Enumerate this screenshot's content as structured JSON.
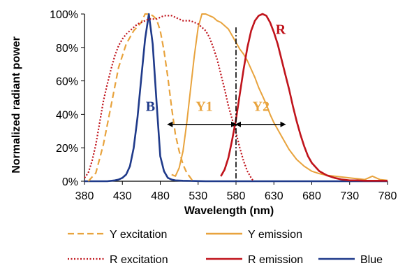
{
  "chart_data": {
    "type": "line",
    "xlabel": "Wavelength (nm)",
    "ylabel": "Normalized radiant power",
    "xlim": [
      380,
      780
    ],
    "ylim": [
      0,
      100
    ],
    "x_ticks": [
      380,
      430,
      480,
      530,
      580,
      630,
      680,
      730,
      780
    ],
    "y_ticks": [
      0,
      20,
      40,
      60,
      80,
      100
    ],
    "y_tick_labels": [
      "0%",
      "20%",
      "40%",
      "60%",
      "80%",
      "100%"
    ],
    "grid": false,
    "legend_position": "bottom",
    "series": [
      {
        "name": "Y excitation",
        "color": "#E8A33D",
        "style": "dashed",
        "x": [
          385,
          395,
          405,
          415,
          425,
          435,
          445,
          455,
          460,
          465,
          470,
          475,
          480,
          485,
          490,
          495,
          500,
          505,
          510,
          515,
          520,
          523
        ],
        "y": [
          0,
          5,
          22,
          45,
          68,
          82,
          90,
          95,
          100,
          100,
          99,
          97,
          90,
          78,
          62,
          44,
          28,
          18,
          10,
          5,
          2,
          0
        ]
      },
      {
        "name": "Y emission",
        "color": "#E8A33D",
        "style": "solid",
        "x": [
          495,
          500,
          505,
          510,
          515,
          520,
          525,
          530,
          535,
          540,
          545,
          550,
          555,
          560,
          565,
          570,
          575,
          580,
          585,
          590,
          595,
          600,
          605,
          610,
          615,
          620,
          625,
          630,
          640,
          650,
          660,
          670,
          680,
          690,
          700,
          710,
          720,
          730,
          740,
          750,
          760,
          770,
          780
        ],
        "y": [
          4,
          3,
          8,
          18,
          35,
          55,
          75,
          92,
          100,
          100,
          99,
          98,
          96,
          95,
          93,
          91,
          87,
          83,
          79,
          76,
          72,
          67,
          62,
          56,
          51,
          46,
          40,
          35,
          27,
          19,
          13,
          9,
          6,
          4.5,
          3.5,
          3,
          2.5,
          2,
          1.5,
          1,
          3,
          1,
          0.5
        ]
      },
      {
        "name": "R excitation",
        "color": "#C0141C",
        "style": "dotted",
        "x": [
          380,
          385,
          390,
          395,
          400,
          405,
          410,
          415,
          420,
          425,
          430,
          435,
          440,
          445,
          450,
          455,
          460,
          465,
          470,
          475,
          480,
          485,
          490,
          495,
          500,
          505,
          510,
          515,
          520,
          525,
          530,
          535,
          540,
          545,
          550,
          555,
          560,
          565,
          570,
          575,
          580,
          585,
          590,
          595,
          600,
          603
        ],
        "y": [
          2,
          5,
          12,
          22,
          35,
          48,
          58,
          67,
          75,
          81,
          85,
          88,
          90,
          92,
          94,
          95,
          96,
          97,
          97,
          97,
          98,
          99,
          99,
          99,
          98,
          97,
          96,
          96,
          96,
          95,
          94,
          92,
          90,
          86,
          80,
          73,
          64,
          55,
          45,
          37,
          29,
          20,
          12,
          6,
          2,
          0
        ]
      },
      {
        "name": "R emission",
        "color": "#C0141C",
        "style": "solid",
        "x": [
          560,
          565,
          570,
          575,
          580,
          585,
          590,
          595,
          600,
          605,
          610,
          615,
          620,
          625,
          630,
          635,
          640,
          645,
          650,
          655,
          660,
          665,
          670,
          675,
          680,
          690,
          700,
          710,
          720,
          730,
          740,
          750,
          760,
          780
        ],
        "y": [
          3,
          7,
          14,
          25,
          37,
          52,
          67,
          80,
          90,
          96,
          99,
          100,
          99,
          95,
          89,
          82,
          73,
          64,
          55,
          45,
          36,
          28,
          21,
          15,
          11,
          6,
          3.5,
          2,
          1,
          0.5,
          0.5,
          0.3,
          0.3,
          0.3
        ]
      },
      {
        "name": "Blue",
        "color": "#1F3A8A",
        "style": "solid",
        "x": [
          380,
          390,
          400,
          410,
          420,
          425,
          430,
          435,
          440,
          445,
          450,
          455,
          460,
          465,
          470,
          475,
          480,
          485,
          490,
          495,
          500,
          510,
          520,
          530,
          540,
          550,
          560,
          570,
          580,
          600,
          650,
          700,
          780
        ],
        "y": [
          0,
          0,
          0,
          0,
          0.5,
          1,
          2,
          4,
          9,
          20,
          38,
          62,
          85,
          100,
          82,
          48,
          15,
          6,
          2,
          1,
          0.5,
          0.3,
          0.2,
          0.1,
          0,
          0,
          0,
          0,
          0,
          0,
          0,
          0,
          0
        ]
      }
    ],
    "annotations": {
      "labels": [
        {
          "text": "B",
          "x": 467,
          "y": 42,
          "color": "#1F3A8A"
        },
        {
          "text": "Y1",
          "x": 538,
          "y": 42,
          "color": "#E8A33D"
        },
        {
          "text": "Y2",
          "x": 613,
          "y": 42,
          "color": "#E8A33D"
        },
        {
          "text": "R",
          "x": 639,
          "y": 88,
          "color": "#C0141C"
        }
      ],
      "vline_x": 580,
      "arrows": [
        {
          "from": 490,
          "to": 580,
          "y": 34
        },
        {
          "from": 580,
          "to": 645,
          "y": 34
        }
      ]
    },
    "legend": [
      {
        "label": "Y excitation",
        "color": "#E8A33D",
        "style": "dashed"
      },
      {
        "label": "Y emission",
        "color": "#E8A33D",
        "style": "solid"
      },
      {
        "label": "R excitation",
        "color": "#C0141C",
        "style": "dotted"
      },
      {
        "label": "R emission",
        "color": "#C0141C",
        "style": "solid"
      },
      {
        "label": "Blue",
        "color": "#1F3A8A",
        "style": "solid"
      }
    ]
  }
}
